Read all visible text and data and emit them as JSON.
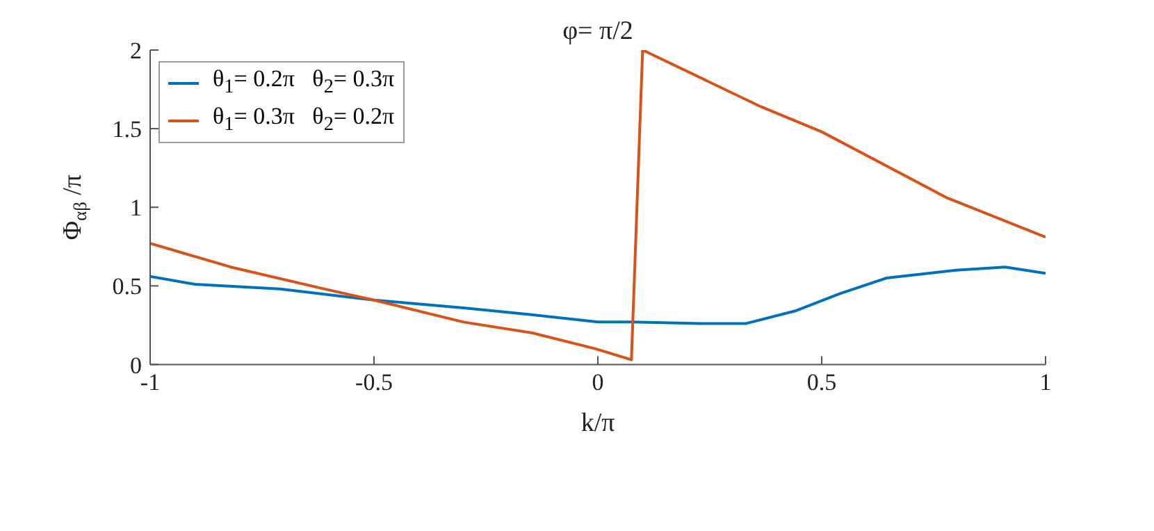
{
  "chart_data": {
    "type": "line",
    "title": "φ= π/2",
    "xlabel": "k/π",
    "ylabel": "Φ$_{αβ}$ /π",
    "xlim": [
      -1,
      1
    ],
    "xticks": [
      -1,
      -0.5,
      0,
      0.5,
      1
    ],
    "ylim": [
      0,
      2
    ],
    "yticks": [
      0,
      0.5,
      1,
      1.5,
      2
    ],
    "grid": false,
    "legend": "top left",
    "marker": "none",
    "line_style": "solid",
    "series": [
      {
        "name": "θ$_{1}$= 0.2π   θ$_{2}$= 0.3π",
        "color": "#0072bd",
        "x": [
          -1,
          -0.9,
          -0.71,
          -0.5,
          -0.3,
          -0.16,
          0,
          0.075,
          0.23,
          0.33,
          0.44,
          0.54,
          0.645,
          0.8,
          0.91,
          1
        ],
        "values": [
          0.56,
          0.51,
          0.48,
          0.41,
          0.36,
          0.32,
          0.27,
          0.27,
          0.26,
          0.26,
          0.34,
          0.45,
          0.55,
          0.6,
          0.62,
          0.58
        ]
      },
      {
        "name": "θ$_{1}$= 0.3π   θ$_{2}$= 0.2π",
        "color": "#d95319",
        "x": [
          -1,
          -0.82,
          -0.61,
          -0.5,
          -0.3,
          -0.145,
          -0.005,
          0.075,
          0.1,
          0.364,
          0.5,
          0.78,
          1
        ],
        "values": [
          0.77,
          0.62,
          0.48,
          0.41,
          0.27,
          0.2,
          0.1,
          0.03,
          2,
          1.64,
          1.48,
          1.06,
          0.81
        ]
      }
    ]
  }
}
